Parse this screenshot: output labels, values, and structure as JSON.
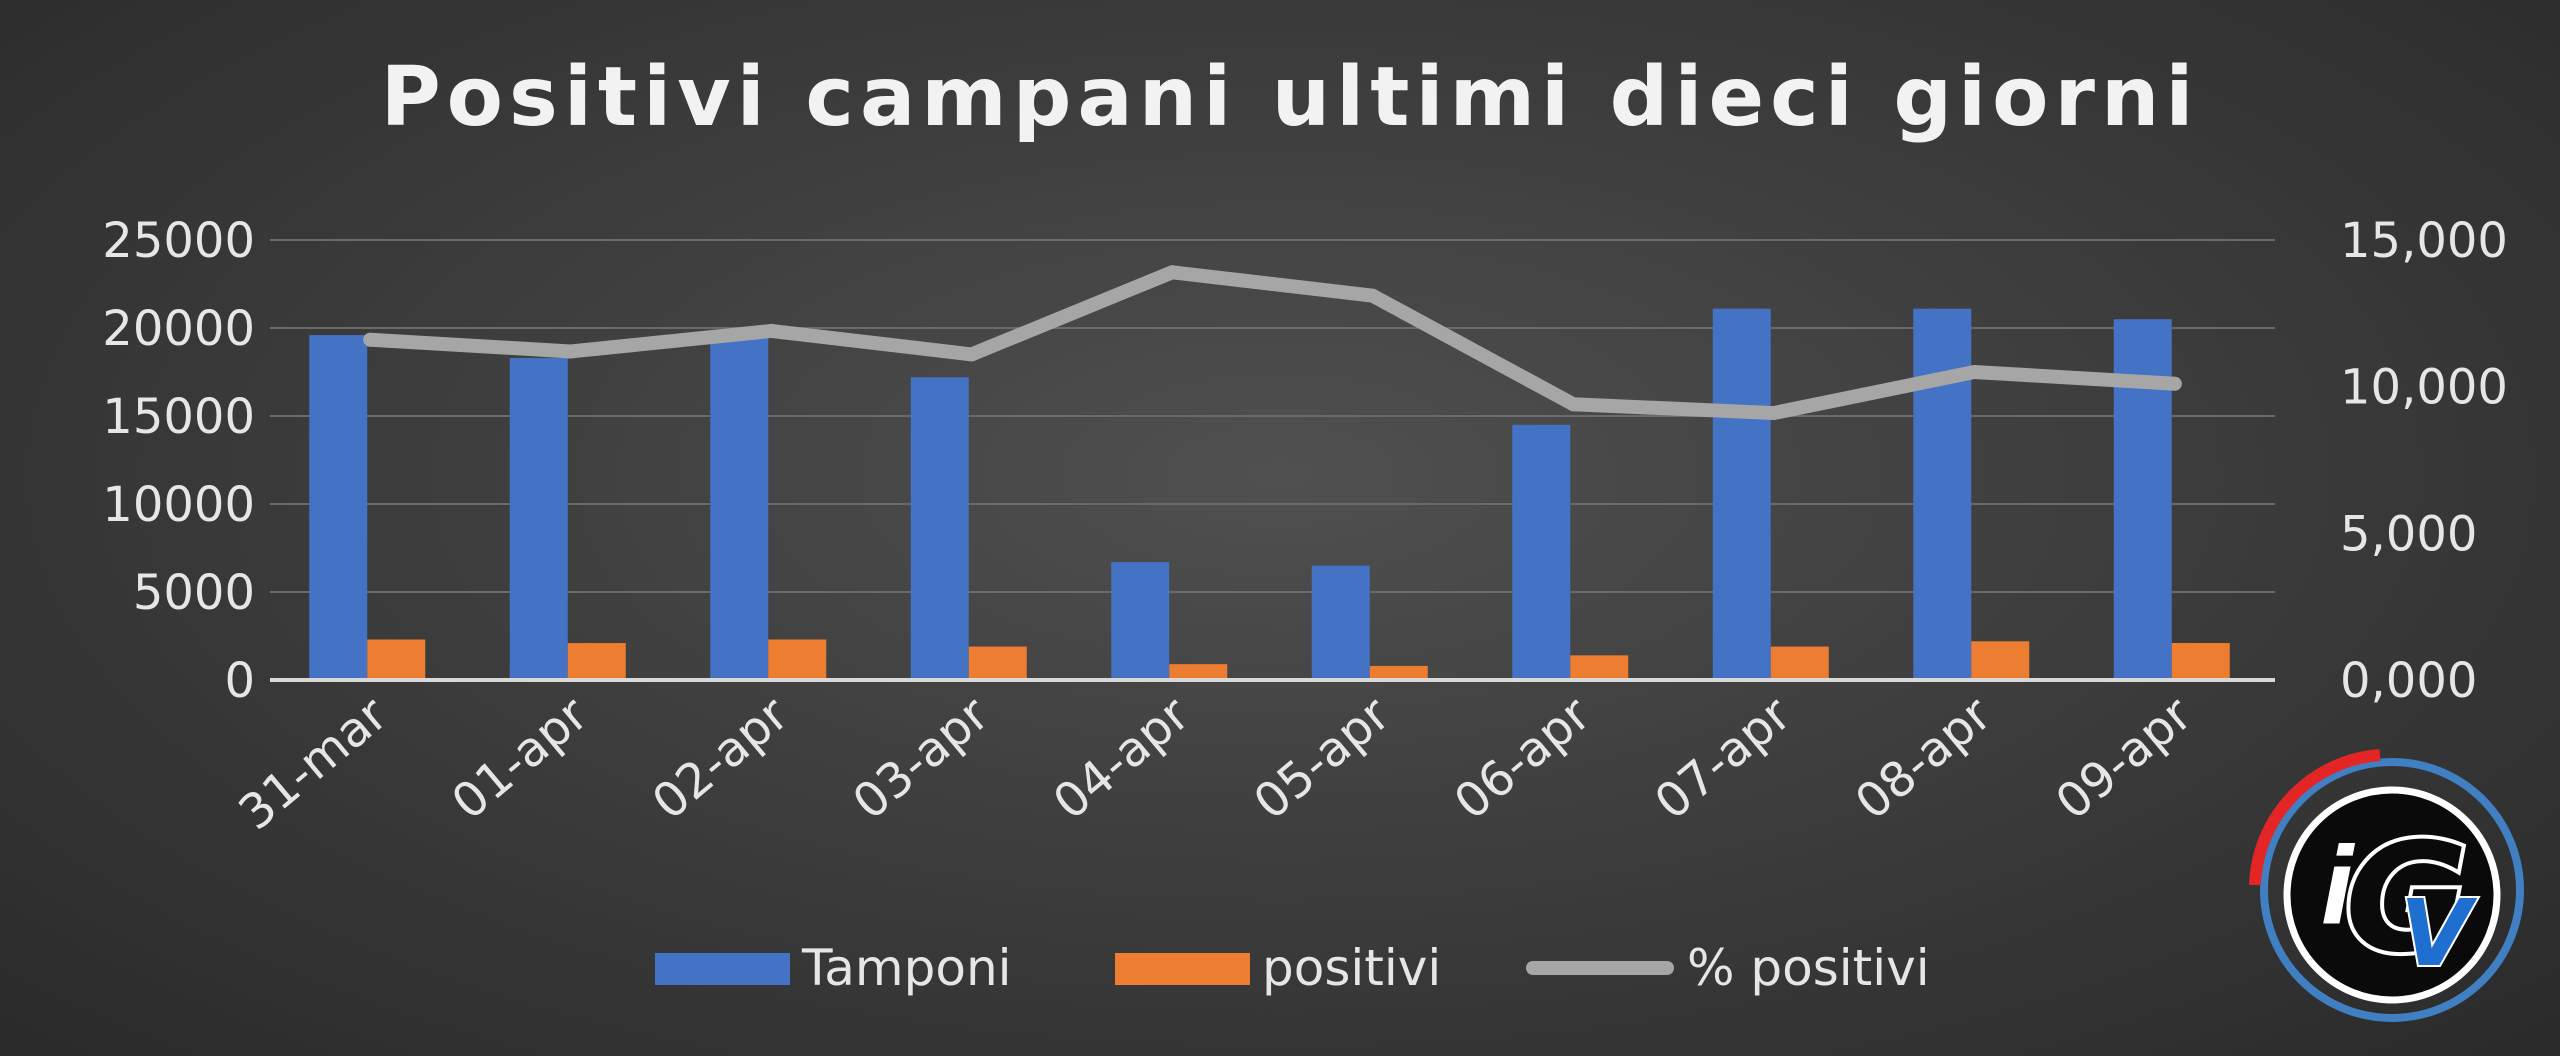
{
  "chart_data": {
    "type": "bar",
    "title": "Positivi campani ultimi dieci giorni",
    "categories": [
      "31-mar",
      "01-apr",
      "02-apr",
      "03-apr",
      "04-apr",
      "05-apr",
      "06-apr",
      "07-apr",
      "08-apr",
      "09-apr"
    ],
    "series": [
      {
        "name": "Tamponi",
        "type": "bar",
        "axis": "left",
        "color": "#4472c4",
        "values": [
          19600,
          18300,
          19500,
          17200,
          6700,
          6500,
          14500,
          21100,
          21100,
          20500
        ]
      },
      {
        "name": "positivi",
        "type": "bar",
        "axis": "left",
        "color": "#ed7d31",
        "values": [
          2300,
          2100,
          2300,
          1900,
          900,
          800,
          1400,
          1900,
          2200,
          2100
        ]
      },
      {
        "name": "% positivi",
        "type": "line",
        "axis": "right",
        "color": "#a6a6a6",
        "values": [
          11.6,
          11.2,
          11.9,
          11.1,
          13.9,
          13.1,
          9.4,
          9.1,
          10.5,
          10.1
        ]
      }
    ],
    "y_left": {
      "min": 0,
      "max": 25000,
      "ticks": [
        "0",
        "5000",
        "10000",
        "15000",
        "20000",
        "25000"
      ]
    },
    "y_right": {
      "min": 0,
      "max": 15,
      "ticks": [
        "0,000",
        "5,000",
        "10,000",
        "15,000"
      ]
    },
    "grid": true,
    "legend_position": "bottom"
  },
  "logo": {
    "text_i": "i",
    "text_g": "G",
    "text_v": "V",
    "ring_color": "#3f7fc2",
    "accent_color": "#e32526"
  }
}
